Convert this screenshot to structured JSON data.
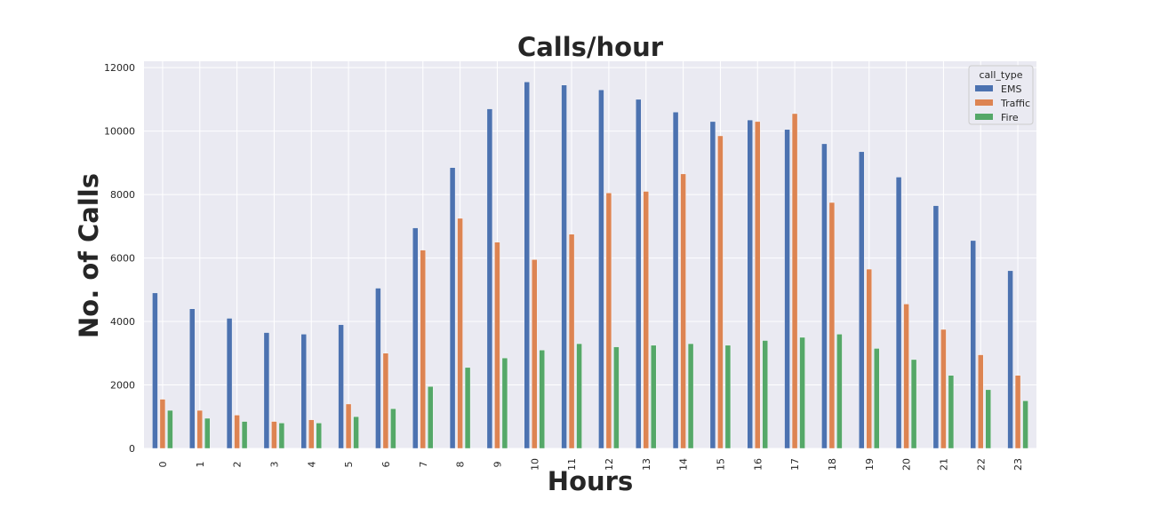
{
  "chart_data": {
    "type": "bar",
    "title": "Calls/hour",
    "xlabel": "Hours",
    "ylabel": "No. of Calls",
    "categories": [
      "0",
      "1",
      "2",
      "3",
      "4",
      "5",
      "6",
      "7",
      "8",
      "9",
      "10",
      "11",
      "12",
      "13",
      "14",
      "15",
      "16",
      "17",
      "18",
      "19",
      "20",
      "21",
      "22",
      "23"
    ],
    "ylim": [
      0,
      12200
    ],
    "yticks": [
      0,
      2000,
      4000,
      6000,
      8000,
      10000,
      12000
    ],
    "grid": true,
    "legend": {
      "title": "call_type",
      "placement": "top-right"
    },
    "series": [
      {
        "name": "EMS",
        "color": "#4c72b0",
        "values": [
          4900,
          4400,
          4100,
          3650,
          3600,
          3900,
          5050,
          6950,
          8850,
          10700,
          11550,
          11450,
          11300,
          11000,
          10600,
          10300,
          10350,
          10050,
          9600,
          9350,
          8550,
          7650,
          6550,
          5600
        ]
      },
      {
        "name": "Traffic",
        "color": "#dd8452",
        "values": [
          1550,
          1200,
          1050,
          850,
          900,
          1400,
          3000,
          6250,
          7250,
          6500,
          5950,
          6750,
          8050,
          8100,
          8650,
          9850,
          10300,
          10550,
          7750,
          5650,
          4550,
          3750,
          2950,
          2300
        ]
      },
      {
        "name": "Fire",
        "color": "#55a868",
        "values": [
          1200,
          950,
          850,
          800,
          800,
          1000,
          1250,
          1950,
          2550,
          2850,
          3100,
          3300,
          3200,
          3250,
          3300,
          3250,
          3400,
          3500,
          3600,
          3150,
          2800,
          2300,
          1850,
          1500
        ]
      }
    ]
  },
  "style": {
    "plot_bg": "#eaeaf2",
    "grid_color": "#ffffff",
    "text_color": "#262626"
  }
}
